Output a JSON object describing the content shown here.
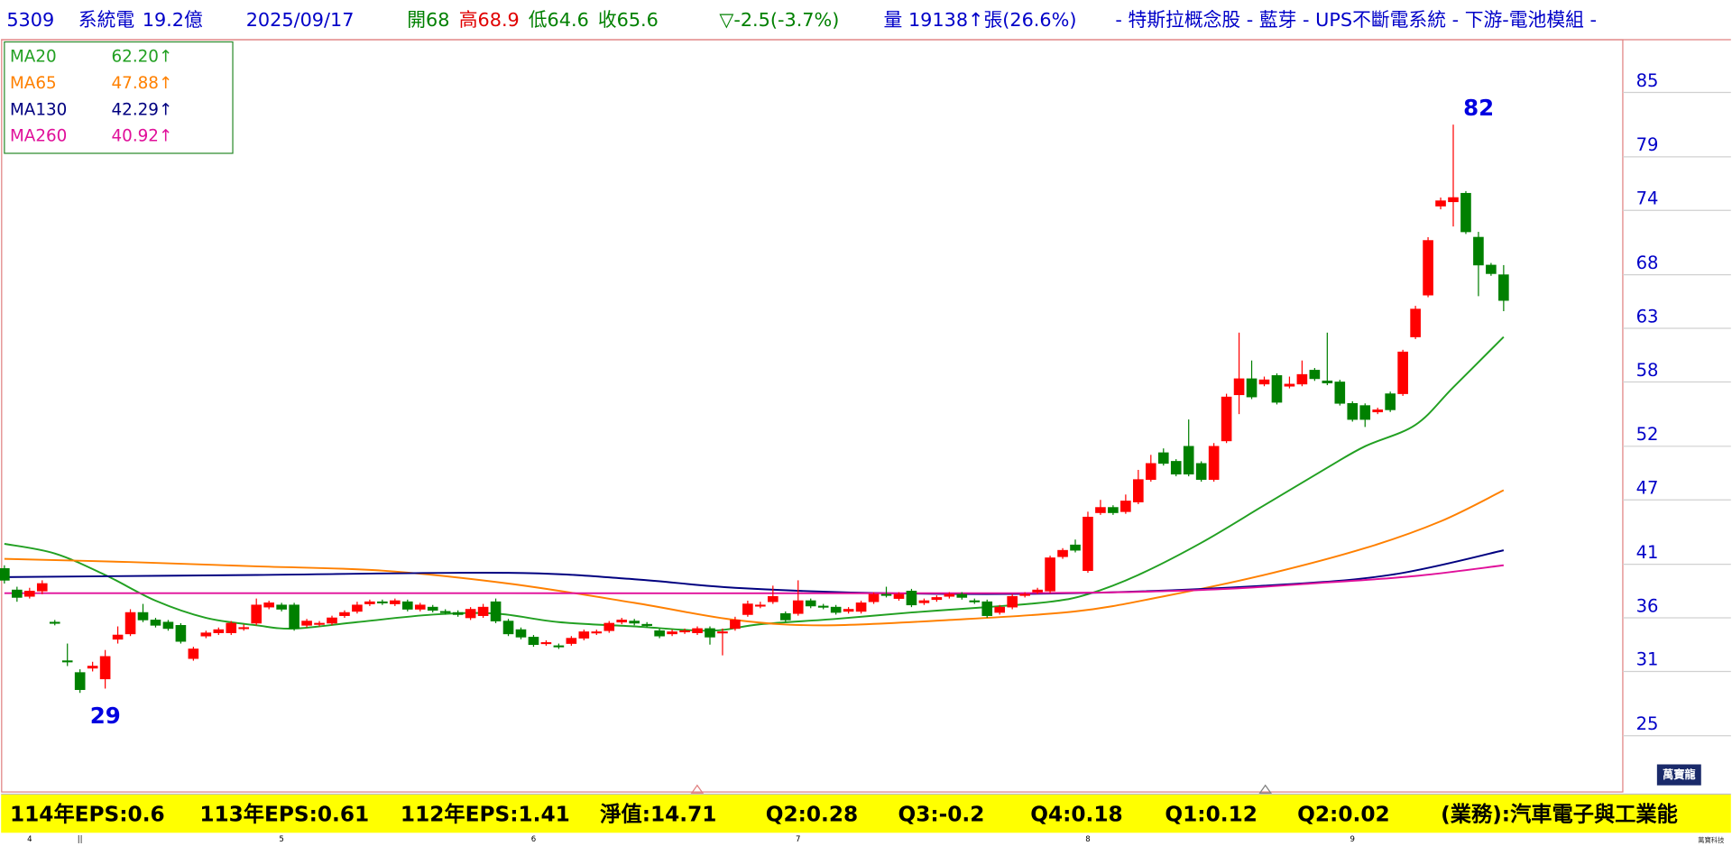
{
  "chart_data": {
    "type": "candlestick",
    "header": [
      {
        "text": "5309",
        "color": "#0000c8"
      },
      {
        "text": "系統電",
        "color": "#0000c8"
      },
      {
        "text": "19.2億",
        "color": "#0000c8"
      },
      {
        "text": "2025/09/17",
        "color": "#0000c8"
      },
      {
        "text": "開68",
        "color": "#008000"
      },
      {
        "text": "高68.9",
        "color": "#e00000"
      },
      {
        "text": "低64.6",
        "color": "#008000"
      },
      {
        "text": "收65.6",
        "color": "#008000"
      },
      {
        "text": "▽-2.5(-3.7%)",
        "color": "#008000"
      },
      {
        "text": "量 19138↑張(26.6%)",
        "color": "#0000c8"
      },
      {
        "text": "- 特斯拉概念股 - 藍芽 - UPS不斷電系統 - 下游-電池模組 -",
        "color": "#0000c8"
      }
    ],
    "categories": [
      null,
      null,
      "4",
      null,
      null,
      null,
      "||",
      null,
      null,
      null,
      null,
      null,
      null,
      null,
      null,
      null,
      null,
      null,
      null,
      null,
      null,
      null,
      "5",
      null,
      null,
      null,
      null,
      null,
      null,
      null,
      null,
      null,
      null,
      null,
      null,
      null,
      null,
      null,
      null,
      null,
      null,
      null,
      "6",
      null,
      null,
      null,
      null,
      null,
      null,
      null,
      null,
      null,
      null,
      null,
      null,
      null,
      null,
      null,
      null,
      null,
      null,
      null,
      null,
      "7",
      null,
      null,
      null,
      null,
      null,
      null,
      null,
      null,
      null,
      null,
      null,
      null,
      null,
      null,
      null,
      null,
      null,
      null,
      null,
      null,
      null,
      null,
      "8",
      null,
      null,
      null,
      null,
      null,
      null,
      null,
      null,
      null,
      null,
      null,
      null,
      null,
      null,
      null,
      null,
      null,
      null,
      null,
      null,
      "9",
      null,
      null,
      null,
      null,
      null,
      null,
      null,
      null,
      null,
      null,
      null,
      null
    ],
    "open": [
      40.6,
      38.6,
      38.0,
      38.5,
      35.6,
      32.0,
      30.9,
      31.3,
      30.3,
      34.0,
      34.5,
      36.5,
      35.8,
      35.6,
      35.3,
      32.2,
      34.3,
      34.6,
      34.6,
      35.0,
      35.5,
      37.0,
      37.2,
      37.2,
      35.3,
      35.4,
      35.5,
      36.2,
      36.6,
      37.3,
      37.5,
      37.3,
      37.5,
      36.8,
      37.0,
      36.6,
      36.5,
      36.0,
      36.2,
      37.5,
      35.7,
      34.9,
      34.2,
      33.6,
      33.4,
      33.6,
      34.1,
      34.6,
      34.8,
      35.6,
      35.7,
      35.4,
      34.8,
      34.5,
      34.7,
      34.6,
      35.0,
      34.6,
      35.0,
      36.3,
      37.1,
      37.5,
      36.4,
      36.4,
      37.6,
      37.1,
      37.0,
      36.6,
      36.6,
      37.5,
      38.2,
      37.8,
      38.5,
      37.4,
      37.7,
      38.0,
      38.2,
      37.6,
      37.5,
      36.5,
      37.0,
      38.1,
      38.4,
      38.5,
      41.7,
      42.8,
      40.4,
      45.8,
      46.3,
      45.9,
      46.8,
      48.9,
      51.4,
      50.6,
      52.0,
      50.4,
      48.9,
      52.5,
      56.8,
      58.3,
      57.8,
      58.6,
      57.6,
      57.8,
      59.1,
      58.1,
      58.0,
      56.0,
      55.8,
      55.2,
      56.9,
      56.9,
      62.2,
      66.1,
      74.4,
      74.8,
      75.6,
      71.5,
      68.9,
      68
    ],
    "high": [
      40.9,
      38.9,
      38.8,
      39.5,
      35.8,
      33.6,
      31.2,
      31.9,
      33.0,
      35.2,
      36.8,
      37.3,
      36.0,
      35.8,
      35.5,
      33.3,
      34.8,
      35.1,
      35.7,
      35.4,
      37.8,
      37.6,
      37.4,
      37.4,
      35.9,
      35.7,
      36.2,
      36.7,
      37.5,
      37.7,
      37.7,
      37.8,
      37.7,
      37.4,
      37.2,
      36.8,
      36.7,
      37.0,
      37.3,
      37.8,
      35.9,
      35.1,
      34.4,
      33.9,
      33.6,
      34.3,
      34.9,
      34.9,
      35.7,
      36.0,
      35.9,
      35.6,
      35.0,
      34.9,
      35.0,
      35.2,
      35.2,
      35.0,
      36.1,
      37.6,
      37.5,
      39.0,
      36.6,
      39.5,
      37.8,
      37.3,
      37.2,
      37.0,
      37.6,
      38.4,
      38.9,
      38.4,
      38.7,
      37.8,
      38.1,
      38.4,
      38.4,
      37.8,
      37.7,
      37.2,
      38.2,
      38.4,
      38.8,
      41.8,
      42.5,
      43.3,
      45.9,
      47.0,
      46.5,
      47.5,
      49.8,
      51.2,
      51.8,
      50.8,
      54.5,
      50.6,
      52.3,
      56.9,
      62.6,
      60.0,
      58.5,
      58.8,
      58.5,
      60.0,
      59.3,
      62.6,
      58.2,
      56.2,
      56.0,
      55.6,
      57.1,
      61.0,
      65.1,
      71.5,
      75.2,
      82,
      75.8,
      72.0,
      69.1,
      68.9
    ],
    "low": [
      39.2,
      37.5,
      37.8,
      38.2,
      35.3,
      31.5,
      29,
      31.0,
      29.4,
      33.6,
      34.3,
      35.6,
      35.1,
      34.8,
      33.6,
      32.0,
      34.1,
      34.4,
      34.4,
      34.8,
      35.3,
      36.8,
      36.6,
      34.8,
      35.1,
      35.2,
      35.3,
      36.0,
      36.4,
      37.1,
      37.2,
      37.1,
      36.6,
      36.6,
      36.5,
      36.3,
      36.1,
      35.8,
      36.0,
      35.5,
      34.3,
      34.0,
      33.3,
      33.4,
      33.1,
      33.4,
      33.9,
      34.4,
      34.6,
      35.4,
      35.3,
      35.1,
      34.1,
      34.3,
      34.5,
      34.4,
      33.5,
      32.5,
      34.8,
      36.1,
      36.9,
      37.3,
      35.6,
      36.2,
      36.9,
      36.8,
      36.3,
      36.4,
      36.4,
      37.3,
      37.9,
      37.6,
      37.0,
      37.2,
      37.5,
      37.8,
      37.7,
      37.3,
      36.0,
      36.3,
      36.8,
      37.9,
      38.2,
      38.3,
      41.5,
      42.1,
      40.2,
      45.6,
      45.6,
      45.7,
      46.6,
      48.7,
      50.2,
      49.2,
      49.2,
      48.7,
      48.7,
      52.3,
      55.0,
      56.4,
      57.6,
      55.9,
      57.4,
      57.6,
      58.1,
      57.7,
      55.8,
      54.3,
      53.8,
      55.0,
      55.2,
      56.7,
      62.0,
      65.9,
      74.1,
      72.5,
      71.8,
      66.0,
      67.9,
      64.6
    ],
    "close": [
      39.5,
      37.9,
      38.5,
      39.2,
      35.5,
      31.9,
      29.3,
      31.5,
      32.4,
      34.4,
      36.5,
      35.8,
      35.3,
      35.0,
      33.8,
      33.1,
      34.6,
      34.9,
      35.5,
      35.1,
      37.2,
      37.4,
      36.8,
      35.0,
      35.7,
      35.5,
      36.0,
      36.5,
      37.2,
      37.5,
      37.4,
      37.6,
      36.8,
      37.2,
      36.7,
      36.5,
      36.3,
      36.8,
      37.0,
      35.7,
      34.5,
      34.2,
      33.5,
      33.7,
      33.3,
      34.1,
      34.7,
      34.7,
      35.5,
      35.8,
      35.5,
      35.3,
      34.3,
      34.7,
      34.8,
      35.0,
      34.2,
      34.7,
      35.8,
      37.3,
      37.2,
      38.0,
      35.8,
      37.6,
      37.1,
      37.0,
      36.5,
      36.8,
      37.4,
      38.2,
      38.1,
      38.2,
      37.2,
      37.6,
      37.9,
      38.2,
      37.9,
      37.5,
      36.2,
      37.0,
      38.0,
      38.2,
      38.6,
      41.6,
      42.3,
      42.3,
      45.4,
      46.3,
      45.8,
      46.9,
      48.9,
      50.4,
      50.4,
      49.4,
      49.4,
      48.9,
      52.0,
      56.6,
      58.3,
      56.6,
      58.2,
      56.1,
      57.8,
      58.7,
      58.3,
      57.9,
      56.0,
      54.5,
      54.5,
      55.4,
      55.4,
      60.8,
      64.8,
      71.2,
      74.9,
      75.2,
      72.0,
      68.9,
      68.1,
      65.6
    ],
    "up_color": "#ff0000",
    "down_color": "#008000",
    "annotations": [
      82,
      29
    ],
    "annotation_color": "#0000e0",
    "ma": [
      {
        "name": "MA20",
        "color": "#22a022",
        "value_label": "62.20↑",
        "x": [
          0,
          4,
          8,
          12,
          16,
          20,
          23,
          28,
          34,
          39,
          44,
          50,
          56,
          60,
          66,
          72,
          78,
          83,
          86,
          90,
          95,
          100,
          105,
          108,
          112,
          115,
          119
        ],
        "values": [
          42.9,
          42.0,
          40.0,
          37.6,
          36.0,
          35.3,
          35.0,
          35.6,
          36.3,
          36.4,
          35.6,
          35.2,
          34.8,
          35.4,
          35.9,
          36.5,
          37.0,
          37.5,
          38.2,
          40.0,
          43.0,
          46.5,
          50.0,
          52.0,
          54.0,
          57.5,
          62.2
        ]
      },
      {
        "name": "MA65",
        "color": "#ff8000",
        "value_label": "47.88↑",
        "x": [
          0,
          10,
          20,
          30,
          40,
          50,
          58,
          65,
          75,
          85,
          92,
          100,
          108,
          114,
          119
        ],
        "values": [
          41.5,
          41.2,
          40.8,
          40.4,
          39.2,
          37.4,
          35.8,
          35.3,
          35.8,
          36.6,
          38.0,
          40.0,
          42.5,
          45.0,
          47.9
        ]
      },
      {
        "name": "MA130",
        "color": "#000080",
        "value_label": "42.29↑",
        "x": [
          0,
          20,
          40,
          50,
          58,
          70,
          85,
          100,
          110,
          119
        ],
        "values": [
          39.8,
          40.0,
          40.2,
          39.6,
          38.8,
          38.3,
          38.3,
          39.0,
          40.0,
          42.3
        ]
      },
      {
        "name": "MA260",
        "color": "#e0109a",
        "value_label": "40.92↑",
        "x": [
          0,
          40,
          80,
          95,
          105,
          112,
          119
        ],
        "values": [
          38.3,
          38.3,
          38.3,
          38.6,
          39.3,
          39.9,
          40.9
        ]
      }
    ],
    "ylim": [
      19.76,
      89.92
    ],
    "yticks": [
      25,
      31,
      36,
      41,
      47,
      52,
      58,
      63,
      68,
      74,
      79,
      85
    ],
    "ytick_color": "#0000c8",
    "footer": [
      "114年EPS:0.6",
      "113年EPS:0.61",
      "112年EPS:1.41",
      "淨值:14.71",
      "Q2:0.28",
      "Q3:-0.2",
      "Q4:0.18",
      "Q1:0.12",
      "Q2:0.02",
      "(業務):汽車電子與工業能"
    ],
    "brand": "萬寶龍",
    "brand_small": "萬寶科技"
  }
}
